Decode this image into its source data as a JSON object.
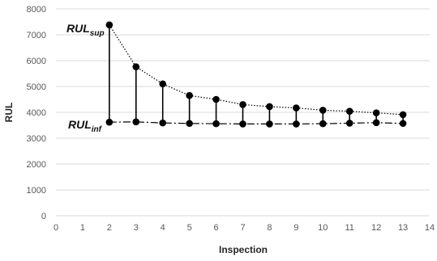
{
  "chart_data": {
    "type": "line",
    "xlabel": "Inspection",
    "ylabel": "RUL",
    "xlim": [
      0,
      14
    ],
    "ylim": [
      0,
      8000
    ],
    "x_ticks": [
      0,
      1,
      2,
      3,
      4,
      5,
      6,
      7,
      8,
      9,
      10,
      11,
      12,
      13,
      14
    ],
    "y_ticks": [
      0,
      1000,
      2000,
      3000,
      4000,
      5000,
      6000,
      7000,
      8000
    ],
    "grid": "horizontal",
    "x": [
      2,
      3,
      4,
      5,
      6,
      7,
      8,
      9,
      10,
      11,
      12,
      13
    ],
    "series": [
      {
        "label_main": "RUL",
        "label_sub": "sup",
        "line_style": "dotted",
        "values": [
          7380,
          5760,
          5100,
          4650,
          4500,
          4300,
          4220,
          4170,
          4080,
          4040,
          3980,
          3910
        ]
      },
      {
        "label_main": "RUL",
        "label_sub": "inf",
        "line_style": "dash-dot",
        "values": [
          3620,
          3630,
          3590,
          3570,
          3560,
          3550,
          3550,
          3550,
          3560,
          3580,
          3600,
          3570
        ]
      }
    ],
    "connectors": "vertical segment between the two series at each inspection",
    "colors": {
      "axis": "#d9d9d9",
      "grid": "#d9d9d9",
      "marker": "#000000",
      "line": "#000000"
    }
  }
}
